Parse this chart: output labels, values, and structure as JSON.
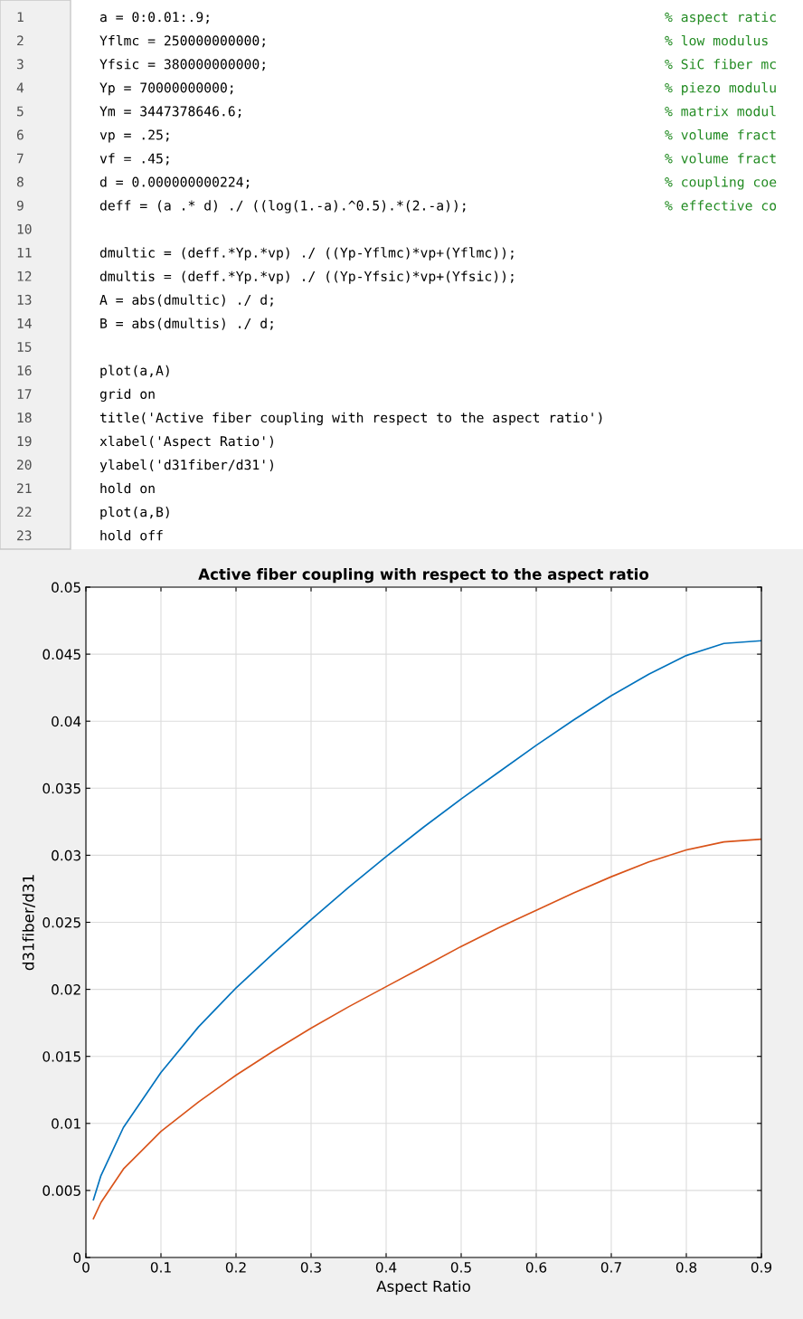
{
  "chart_data": {
    "type": "line",
    "title": "Active fiber coupling with respect to the aspect ratio",
    "xlabel": "Aspect Ratio",
    "ylabel": "d31fiber/d31",
    "x": [
      0.01,
      0.02,
      0.05,
      0.1,
      0.15,
      0.2,
      0.25,
      0.3,
      0.35,
      0.4,
      0.45,
      0.5,
      0.55,
      0.6,
      0.65,
      0.7,
      0.75,
      0.8,
      0.85,
      0.9
    ],
    "series": [
      {
        "color": "#0072bd",
        "values": [
          0.0043,
          0.0061,
          0.0097,
          0.0138,
          0.0172,
          0.0201,
          0.0227,
          0.0252,
          0.0276,
          0.0299,
          0.0321,
          0.0342,
          0.0362,
          0.0382,
          0.0401,
          0.0419,
          0.0435,
          0.0449,
          0.0458,
          0.046
        ]
      },
      {
        "color": "#d95319",
        "values": [
          0.0029,
          0.0041,
          0.0066,
          0.0094,
          0.0116,
          0.0136,
          0.0154,
          0.0171,
          0.0187,
          0.0202,
          0.0217,
          0.0232,
          0.0246,
          0.0259,
          0.0272,
          0.0284,
          0.0295,
          0.0304,
          0.031,
          0.0312
        ]
      }
    ],
    "xlim": [
      0,
      0.9
    ],
    "xticks": [
      0,
      0.1,
      0.2,
      0.3,
      0.4,
      0.5,
      0.6,
      0.7,
      0.8,
      0.9
    ],
    "ylim": [
      0,
      0.05
    ],
    "yticks": [
      0,
      0.005,
      0.01,
      0.015,
      0.02,
      0.025,
      0.03,
      0.035,
      0.04,
      0.045,
      0.05
    ],
    "grid": true,
    "marker": "none",
    "line_style": "solid",
    "annotations": [
      "1\ta = 0:0.01:.9;\t% aspect ratic",
      "2\tYflmc = 250000000000;\t% low modulus",
      "3\tYfsic = 380000000000;\t% SiC fiber mc",
      "4\tYp = 70000000000;\t% piezo modulu",
      "5\tYm = 3447378646.6;\t% matrix modul",
      "6\tvp = .25;\t% volume fract",
      "7\tvf = .45;\t% volume fract",
      "8\td = 0.000000000224;\t% coupling coe",
      "9\tdeff = (a .* d) ./ ((log(1.-a).^0.5).*(2.-a));\t% effective co",
      "10",
      "11\tdmultic = (deff.*Yp.*vp) ./ ((Yp-Yflmc)*vp+(Yflmc));",
      "12\tdmultis = (deff.*Yp.*vp) ./ ((Yp-Yfsic)*vp+(Yfsic));",
      "13\tA = abs(dmultic) ./ d;",
      "14\tB = abs(dmultis) ./ d;",
      "15",
      "16\tplot(a,A)",
      "17\tgrid on",
      "18\ttitle('Active fiber coupling with respect to the aspect ratio')",
      "19\txlabel('Aspect Ratio')",
      "20\tylabel('d31fiber/d31')",
      "21\thold on",
      "22\tplot(a,B)",
      "23\thold off"
    ]
  }
}
